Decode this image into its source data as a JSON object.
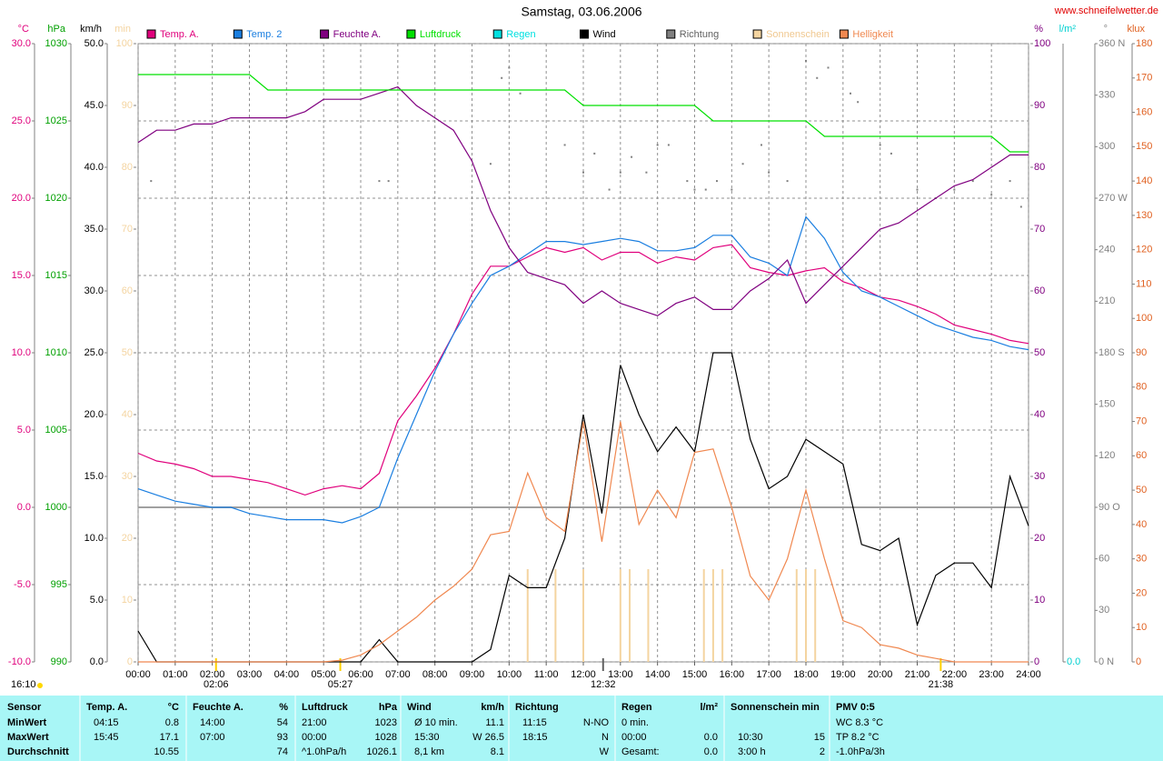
{
  "chart_data": {
    "type": "line",
    "title": "Samstag, 03.06.2006",
    "source": "www.schneifelwetter.de",
    "time": "16:10",
    "sun_times": [
      "02:06",
      "05:27",
      "12:32",
      "21:38"
    ],
    "grid": true,
    "xlim": [
      0,
      24
    ],
    "xticks": [
      {
        "value": 0,
        "label": "00:00"
      },
      {
        "value": 1,
        "label": "01:00"
      },
      {
        "value": 2,
        "label": "02:00"
      },
      {
        "value": 3,
        "label": "03:00"
      },
      {
        "value": 4,
        "label": "04:00"
      },
      {
        "value": 5,
        "label": "05:00"
      },
      {
        "value": 6,
        "label": "06:00"
      },
      {
        "value": 7,
        "label": "07:00"
      },
      {
        "value": 8,
        "label": "08:00"
      },
      {
        "value": 9,
        "label": "09:00"
      },
      {
        "value": 10,
        "label": "10:00"
      },
      {
        "value": 11,
        "label": "11:00"
      },
      {
        "value": 12,
        "label": "12:00"
      },
      {
        "value": 13,
        "label": "13:00"
      },
      {
        "value": 14,
        "label": "14:00"
      },
      {
        "value": 15,
        "label": "15:00"
      },
      {
        "value": 16,
        "label": "16:00"
      },
      {
        "value": 17,
        "label": "17:00"
      },
      {
        "value": 18,
        "label": "18:00"
      },
      {
        "value": 19,
        "label": "19:00"
      },
      {
        "value": 20,
        "label": "20:00"
      },
      {
        "value": 21,
        "label": "21:00"
      },
      {
        "value": 22,
        "label": "22:00"
      },
      {
        "value": 23,
        "label": "23:00"
      },
      {
        "value": 24,
        "label": "24:00"
      }
    ],
    "axes": {
      "temp": {
        "label": "°C",
        "color": "#e0007c",
        "lim": [
          -10,
          30
        ],
        "ticks": [
          {
            "value": -10,
            "label": "-10.0"
          },
          {
            "value": -5,
            "label": "-5.0"
          },
          {
            "value": 0,
            "label": "0.0"
          },
          {
            "value": 5,
            "label": "5.0"
          },
          {
            "value": 10,
            "label": "10.0"
          },
          {
            "value": 15,
            "label": "15.0"
          },
          {
            "value": 20,
            "label": "20.0"
          },
          {
            "value": 25,
            "label": "25.0"
          },
          {
            "value": 30,
            "label": "30.0"
          }
        ]
      },
      "hpa": {
        "label": "hPa",
        "color": "#00a000",
        "lim": [
          990,
          1030
        ],
        "ticks": [
          990,
          995,
          1000,
          1005,
          1010,
          1015,
          1020,
          1025,
          1030
        ]
      },
      "wind": {
        "label": "km/h",
        "color": "#000000",
        "lim": [
          0,
          50
        ],
        "ticks": [
          {
            "value": 0,
            "label": "0.0"
          },
          {
            "value": 5,
            "label": "5.0"
          },
          {
            "value": 10,
            "label": "10.0"
          },
          {
            "value": 15,
            "label": "15.0"
          },
          {
            "value": 20,
            "label": "20.0"
          },
          {
            "value": 25,
            "label": "25.0"
          },
          {
            "value": 30,
            "label": "30.0"
          },
          {
            "value": 35,
            "label": "35.0"
          },
          {
            "value": 40,
            "label": "40.0"
          },
          {
            "value": 45,
            "label": "45.0"
          },
          {
            "value": 50,
            "label": "50.0"
          }
        ]
      },
      "min": {
        "label": "min",
        "color": "#f4d4a0",
        "lim": [
          0,
          100
        ],
        "ticks": [
          0,
          10,
          20,
          30,
          40,
          50,
          60,
          70,
          80,
          90,
          100
        ]
      },
      "hum": {
        "label": "%",
        "color": "#800080",
        "lim": [
          0,
          100
        ],
        "ticks": [
          0,
          10,
          20,
          30,
          40,
          50,
          60,
          70,
          80,
          90,
          100
        ]
      },
      "rain": {
        "label": "l/m²",
        "color": "#00d0d0",
        "ticks": [
          {
            "value": 0,
            "label": "0.0"
          }
        ]
      },
      "dir": {
        "label": "°",
        "color": "#808080",
        "lim": [
          0,
          360
        ],
        "ticks": [
          {
            "value": 0,
            "label": "0 N"
          },
          30,
          60,
          {
            "value": 90,
            "label": "90 O"
          },
          120,
          150,
          {
            "value": 180,
            "label": "180 S"
          },
          210,
          240,
          {
            "value": 270,
            "label": "270 W"
          },
          300,
          330,
          {
            "value": 360,
            "label": "360 N"
          }
        ]
      },
      "klux": {
        "label": "klux",
        "color": "#e06020",
        "lim": [
          0,
          180
        ],
        "ticks": [
          0,
          10,
          20,
          30,
          40,
          50,
          60,
          70,
          80,
          90,
          100,
          110,
          120,
          130,
          140,
          150,
          160,
          170,
          180
        ]
      }
    },
    "x": [
      0,
      0.5,
      1,
      1.5,
      2,
      2.5,
      3,
      3.5,
      4,
      4.5,
      5,
      5.5,
      6,
      6.5,
      7,
      7.5,
      8,
      8.5,
      9,
      9.5,
      10,
      10.5,
      11,
      11.5,
      12,
      12.5,
      13,
      13.5,
      14,
      14.5,
      15,
      15.5,
      16,
      16.5,
      17,
      17.5,
      18,
      18.5,
      19,
      19.5,
      20,
      20.5,
      21,
      21.5,
      22,
      22.5,
      23,
      23.5,
      24
    ],
    "series": [
      {
        "name": "Temp. A.",
        "color": "#e0007c",
        "axis": "temp",
        "kind": "line",
        "values": [
          3.5,
          3.0,
          2.8,
          2.5,
          2.0,
          2.0,
          1.8,
          1.6,
          1.2,
          0.8,
          1.2,
          1.4,
          1.2,
          2.2,
          5.6,
          7.2,
          9.0,
          11.2,
          13.8,
          15.6,
          15.6,
          16.2,
          16.8,
          16.5,
          16.8,
          16.0,
          16.5,
          16.5,
          15.8,
          16.2,
          16.0,
          16.8,
          17.0,
          15.5,
          15.2,
          15.0,
          15.3,
          15.5,
          14.6,
          14.2,
          13.6,
          13.4,
          13.0,
          12.5,
          11.8,
          11.5,
          11.2,
          10.8,
          10.6
        ]
      },
      {
        "name": "Temp. 2",
        "color": "#1a7ee0",
        "axis": "temp",
        "kind": "line",
        "values": [
          1.2,
          0.8,
          0.4,
          0.2,
          0.0,
          0.0,
          -0.4,
          -0.6,
          -0.8,
          -0.8,
          -0.8,
          -1.0,
          -0.6,
          0.0,
          3.2,
          6.0,
          8.8,
          11.2,
          13.2,
          15.0,
          15.6,
          16.4,
          17.2,
          17.2,
          17.0,
          17.2,
          17.4,
          17.2,
          16.6,
          16.6,
          16.8,
          17.6,
          17.6,
          16.2,
          15.8,
          15.0,
          18.8,
          17.4,
          15.2,
          14.0,
          13.6,
          13.0,
          12.4,
          11.8,
          11.4,
          11.0,
          10.8,
          10.4,
          10.2
        ]
      },
      {
        "name": "Feuchte A.",
        "color": "#800080",
        "axis": "hum",
        "kind": "line",
        "values": [
          84,
          86,
          86,
          87,
          87,
          88,
          88,
          88,
          88,
          89,
          91,
          91,
          91,
          92,
          93,
          90,
          88,
          86,
          81,
          73,
          67,
          63,
          62,
          61,
          58,
          60,
          58,
          57,
          56,
          58,
          59,
          57,
          57,
          60,
          62,
          65,
          58,
          61,
          64,
          67,
          70,
          71,
          73,
          75,
          77,
          78,
          80,
          82,
          82
        ]
      },
      {
        "name": "Luftdruck",
        "color": "#00e000",
        "axis": "hpa",
        "kind": "line",
        "values": [
          1028,
          1028,
          1028,
          1028,
          1028,
          1028,
          1028,
          1027,
          1027,
          1027,
          1027,
          1027,
          1027,
          1027,
          1027,
          1027,
          1027,
          1027,
          1027,
          1027,
          1027,
          1027,
          1027,
          1027,
          1026,
          1026,
          1026,
          1026,
          1026,
          1026,
          1026,
          1025,
          1025,
          1025,
          1025,
          1025,
          1025,
          1024,
          1024,
          1024,
          1024,
          1024,
          1024,
          1024,
          1024,
          1024,
          1024,
          1023,
          1023
        ]
      },
      {
        "name": "Regen",
        "color": "#00e0e0",
        "axis": "rain",
        "kind": "line"
      },
      {
        "name": "Wind",
        "color": "#000000",
        "axis": "wind",
        "kind": "line",
        "values": [
          2.5,
          0,
          0,
          0,
          0,
          0,
          0,
          0,
          0,
          0,
          0,
          0,
          0,
          1.8,
          0,
          0,
          0,
          0,
          0,
          1.0,
          7.0,
          6.0,
          6.0,
          10.0,
          20.0,
          12.0,
          24.0,
          20.0,
          17.0,
          19.0,
          17.0,
          25.0,
          25.0,
          18.0,
          14.0,
          15.0,
          18.0,
          17.0,
          16.0,
          9.5,
          9.0,
          10.0,
          3.0,
          7.0,
          8.0,
          8.0,
          6.0,
          15.0,
          11.0
        ]
      },
      {
        "name": "Richtung",
        "color": "#808080",
        "axis": "dir",
        "kind": "dots",
        "x": [
          0.35,
          6.5,
          6.75,
          9.5,
          9.8,
          10,
          10.3,
          11.5,
          12,
          12.3,
          12.7,
          13,
          13.3,
          13.7,
          14,
          14.3,
          14.8,
          15,
          15.3,
          15.6,
          16,
          16.3,
          16.8,
          17,
          17.5,
          18,
          18.3,
          18.6,
          19.2,
          19.4,
          20,
          20.3,
          21,
          21.5,
          22,
          22.5,
          23,
          23.5,
          23.8
        ],
        "values": [
          280,
          280,
          280,
          290,
          340,
          346,
          331,
          301,
          285,
          296,
          275,
          285,
          294,
          285,
          301,
          301,
          280,
          275,
          275,
          280,
          275,
          290,
          301,
          285,
          280,
          350,
          340,
          346,
          331,
          326,
          301,
          296,
          275,
          270,
          275,
          280,
          272,
          280,
          265
        ]
      },
      {
        "name": "Sonnenschein",
        "color": "#f4d4a0",
        "axis": "min",
        "kind": "bars",
        "x": [
          10.5,
          11.25,
          12,
          13,
          13.25,
          13.75,
          15.25,
          15.5,
          15.75,
          17.75,
          18,
          18.25
        ],
        "values": [
          15,
          15,
          15,
          15,
          15,
          15,
          15,
          15,
          15,
          15,
          15,
          15
        ]
      },
      {
        "name": "Helligkeit",
        "color": "#f08850",
        "axis": "klux",
        "kind": "line",
        "values": [
          0,
          0,
          0,
          0,
          0,
          0,
          0,
          0,
          0,
          0,
          0,
          0.5,
          2,
          5,
          9,
          13,
          18,
          22,
          27,
          37,
          38,
          55,
          42,
          38,
          70,
          35,
          70,
          40,
          50,
          42,
          61,
          62,
          45,
          25,
          18,
          30,
          50,
          30,
          12,
          10,
          5,
          4,
          2,
          1,
          0,
          0,
          0,
          0,
          0
        ]
      }
    ]
  },
  "table": {
    "title": "Sensor",
    "row_labels": [
      "MinWert",
      "MaxWert",
      "Durchschnitt"
    ],
    "columns": [
      {
        "title": "Temp. A.",
        "unit": "°C",
        "cells": [
          [
            "04:15",
            "0.8"
          ],
          [
            "15:45",
            "17.1"
          ],
          [
            null,
            "10.55"
          ]
        ]
      },
      {
        "title": "Feuchte A.",
        "unit": "%",
        "cells": [
          [
            "14:00",
            "54"
          ],
          [
            "07:00",
            "93"
          ],
          [
            null,
            "74"
          ]
        ]
      },
      {
        "title": "Luftdruck",
        "unit": "hPa",
        "cells": [
          [
            "21:00",
            "1023"
          ],
          [
            "00:00",
            "1028"
          ],
          [
            "^1.0hPa/h",
            "1026.1"
          ]
        ]
      },
      {
        "title": "Wind",
        "unit": "km/h",
        "cells": [
          [
            "Ø 10 min.",
            "11.1"
          ],
          [
            "15:30",
            "W 26.5"
          ],
          [
            "8,1 km",
            "8.1"
          ]
        ]
      },
      {
        "title": "Richtung",
        "unit": null,
        "cells": [
          [
            "11:15",
            "N-NO"
          ],
          [
            "18:15",
            "N"
          ],
          [
            null,
            "W"
          ]
        ]
      },
      {
        "title": "Regen",
        "unit": "l/m²",
        "cells": [
          [
            "0 min.",
            null
          ],
          [
            "00:00",
            "0.0"
          ],
          [
            "Gesamt:",
            "0.0"
          ]
        ]
      },
      {
        "title": "Sonnenschein min",
        "unit": null,
        "cells": [
          [
            null,
            null
          ],
          [
            "10:30",
            "15"
          ],
          [
            "3:00 h",
            "2"
          ]
        ]
      },
      {
        "title": "PMV 0:5",
        "unit": null,
        "cells": [
          [
            "WC 8.3 °C",
            null
          ],
          [
            "TP 8.2 °C",
            null
          ],
          [
            "-1.0hPa/3h",
            null
          ]
        ]
      }
    ]
  }
}
